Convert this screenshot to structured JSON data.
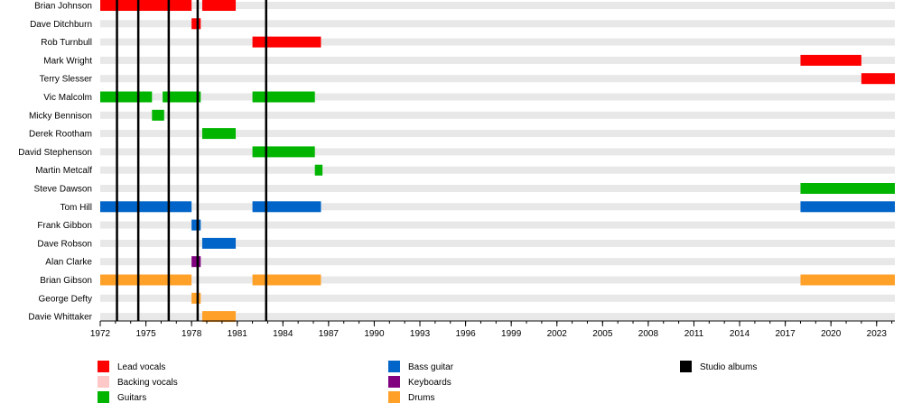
{
  "chart_data": {
    "type": "timeline",
    "x_axis": {
      "range": [
        1972,
        2024.2
      ],
      "ticks": [
        1972,
        1975,
        1978,
        1981,
        1984,
        1987,
        1990,
        1993,
        1996,
        1999,
        2002,
        2005,
        2008,
        2011,
        2014,
        2017,
        2020,
        2023
      ]
    },
    "roles": {
      "lead_vocals": {
        "label": "Lead vocals",
        "color": "#ff0000"
      },
      "backing_vocals": {
        "label": "Backing vocals",
        "color": "#ffc8c8"
      },
      "guitars": {
        "label": "Guitars",
        "color": "#00b400"
      },
      "bass": {
        "label": "Bass guitar",
        "color": "#0064c8"
      },
      "keyboards": {
        "label": "Keyboards",
        "color": "#800080"
      },
      "drums": {
        "label": "Drums",
        "color": "#ffa028"
      },
      "studio_albums": {
        "label": "Studio albums",
        "color": "#000000"
      }
    },
    "legend_order": [
      [
        "lead_vocals",
        "backing_vocals",
        "guitars"
      ],
      [
        "bass",
        "keyboards",
        "drums"
      ],
      [
        "studio_albums"
      ]
    ],
    "studio_albums": [
      1973.1,
      1974.5,
      1976.5,
      1978.4,
      1982.9
    ],
    "members": [
      {
        "name": "Brian Johnson",
        "bars": [
          {
            "role": "lead_vocals",
            "start": 1972.0,
            "end": 1978.0
          },
          {
            "role": "lead_vocals",
            "start": 1978.7,
            "end": 1980.9
          }
        ]
      },
      {
        "name": "Dave Ditchburn",
        "bars": [
          {
            "role": "lead_vocals",
            "start": 1978.0,
            "end": 1978.6
          }
        ]
      },
      {
        "name": "Rob Turnbull",
        "bars": [
          {
            "role": "lead_vocals",
            "start": 1982.0,
            "end": 1986.5
          }
        ]
      },
      {
        "name": "Mark Wright",
        "bars": [
          {
            "role": "lead_vocals",
            "start": 2018.0,
            "end": 2022.0
          }
        ]
      },
      {
        "name": "Terry Slesser",
        "bars": [
          {
            "role": "lead_vocals",
            "start": 2022.0,
            "end": 2024.2
          }
        ]
      },
      {
        "name": "Vic Malcolm",
        "bars": [
          {
            "role": "guitars",
            "start": 1972.0,
            "end": 1975.4
          },
          {
            "role": "guitars",
            "start": 1976.1,
            "end": 1978.6
          },
          {
            "role": "guitars",
            "start": 1982.0,
            "end": 1986.1
          }
        ]
      },
      {
        "name": "Micky Bennison",
        "bars": [
          {
            "role": "guitars",
            "start": 1975.4,
            "end": 1976.2
          }
        ]
      },
      {
        "name": "Derek Rootham",
        "bars": [
          {
            "role": "guitars",
            "start": 1978.7,
            "end": 1980.9
          }
        ]
      },
      {
        "name": "David Stephenson",
        "bars": [
          {
            "role": "guitars",
            "start": 1982.0,
            "end": 1986.1
          }
        ]
      },
      {
        "name": "Martin Metcalf",
        "bars": [
          {
            "role": "guitars",
            "start": 1986.1,
            "end": 1986.6
          }
        ]
      },
      {
        "name": "Steve Dawson",
        "bars": [
          {
            "role": "guitars",
            "start": 2018.0,
            "end": 2024.2
          }
        ]
      },
      {
        "name": "Tom Hill",
        "bars": [
          {
            "role": "bass",
            "start": 1972.0,
            "end": 1978.0
          },
          {
            "role": "bass",
            "start": 1982.0,
            "end": 1986.5
          },
          {
            "role": "bass",
            "start": 2018.0,
            "end": 2024.2
          }
        ]
      },
      {
        "name": "Frank Gibbon",
        "bars": [
          {
            "role": "bass",
            "start": 1978.0,
            "end": 1978.6
          }
        ]
      },
      {
        "name": "Dave Robson",
        "bars": [
          {
            "role": "bass",
            "start": 1978.7,
            "end": 1980.9
          }
        ]
      },
      {
        "name": "Alan Clarke",
        "bars": [
          {
            "role": "keyboards",
            "start": 1978.0,
            "end": 1978.6
          }
        ]
      },
      {
        "name": "Brian Gibson",
        "bars": [
          {
            "role": "drums",
            "start": 1972.0,
            "end": 1978.0
          },
          {
            "role": "drums",
            "start": 1982.0,
            "end": 1986.5
          },
          {
            "role": "drums",
            "start": 2018.0,
            "end": 2024.2
          }
        ]
      },
      {
        "name": "George Defty",
        "bars": [
          {
            "role": "drums",
            "start": 1978.0,
            "end": 1978.6
          }
        ]
      },
      {
        "name": "Davie Whittaker",
        "bars": [
          {
            "role": "drums",
            "start": 1978.7,
            "end": 1980.9
          }
        ]
      }
    ]
  }
}
